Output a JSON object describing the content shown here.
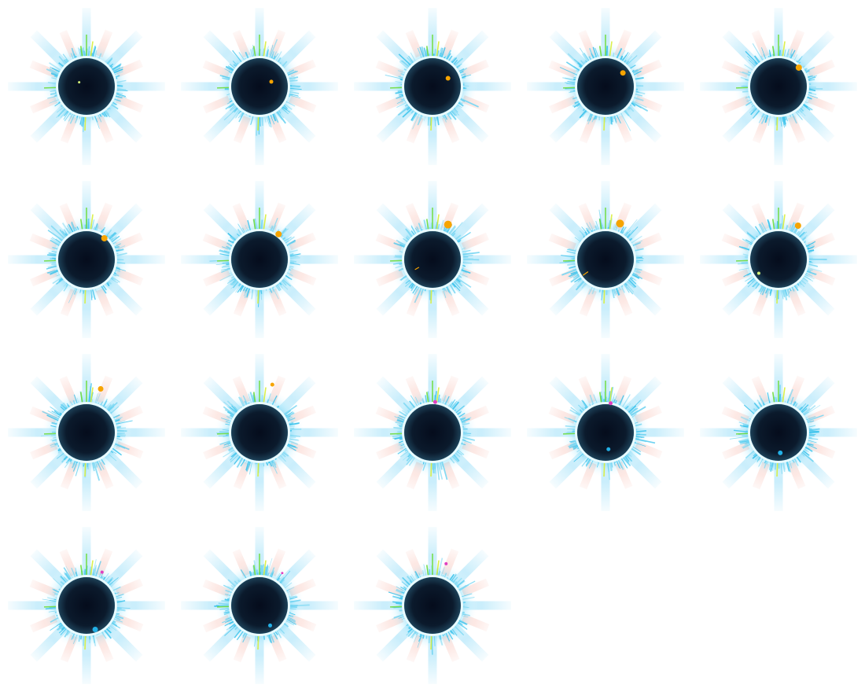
{
  "sheet": {
    "background": "#ffffff",
    "layout": {
      "columns": 5,
      "rows": 4,
      "frame_count": 18
    }
  },
  "palette": {
    "disk_core": "#050c1c",
    "disk_edge": "#1d4158",
    "limb_ring": "#e9fbff",
    "corona_blue": "#40c4ec",
    "corona_light": "#bdefff",
    "diagonal_rays": "#c4ecfb",
    "axis_rays": "#cdf1fb",
    "salmon_rays": "#fbd9d2",
    "spike_green": "#6fdc3a",
    "spike_yellow": "#d8ee3a",
    "sprite_orange": "#f6a400",
    "sprite_magenta": "#e040c0",
    "sprite_cyan": "#23b0e6"
  },
  "frames": [
    {
      "index": 1,
      "sprite": {
        "kind": "none",
        "angle_deg": 0,
        "dist": 0,
        "size": 0
      },
      "extra": {
        "kind": "speck",
        "angle_deg": 300,
        "dist": 0.3,
        "size": 1.5
      }
    },
    {
      "index": 2,
      "sprite": {
        "kind": "orange",
        "angle_deg": 68,
        "dist": 0.45,
        "size": 2.5
      },
      "extra": {
        "kind": "none",
        "angle_deg": 0,
        "dist": 0,
        "size": 0
      }
    },
    {
      "index": 3,
      "sprite": {
        "kind": "orange",
        "angle_deg": 62,
        "dist": 0.62,
        "size": 3
      },
      "extra": {
        "kind": "none",
        "angle_deg": 0,
        "dist": 0,
        "size": 0
      }
    },
    {
      "index": 4,
      "sprite": {
        "kind": "orange",
        "angle_deg": 52,
        "dist": 0.78,
        "size": 3.5
      },
      "extra": {
        "kind": "none",
        "angle_deg": 0,
        "dist": 0,
        "size": 0
      }
    },
    {
      "index": 5,
      "sprite": {
        "kind": "orange",
        "angle_deg": 47,
        "dist": 0.98,
        "size": 4
      },
      "extra": {
        "kind": "none",
        "angle_deg": 0,
        "dist": 0,
        "size": 0
      }
    },
    {
      "index": 6,
      "sprite": {
        "kind": "orange",
        "angle_deg": 40,
        "dist": 0.98,
        "size": 4
      },
      "extra": {
        "kind": "none",
        "angle_deg": 0,
        "dist": 0,
        "size": 0
      }
    },
    {
      "index": 7,
      "sprite": {
        "kind": "orange",
        "angle_deg": 37,
        "dist": 1.12,
        "size": 4
      },
      "extra": {
        "kind": "none",
        "angle_deg": 0,
        "dist": 0,
        "size": 0
      }
    },
    {
      "index": 8,
      "sprite": {
        "kind": "orange",
        "angle_deg": 24,
        "dist": 1.35,
        "size": 5
      },
      "extra": {
        "kind": "streak",
        "angle_deg": 240,
        "dist": 0.55,
        "size": 6
      }
    },
    {
      "index": 9,
      "sprite": {
        "kind": "orange",
        "angle_deg": 22,
        "dist": 1.37,
        "size": 5
      },
      "extra": {
        "kind": "streak",
        "angle_deg": 235,
        "dist": 0.75,
        "size": 8
      }
    },
    {
      "index": 10,
      "sprite": {
        "kind": "orange",
        "angle_deg": 30,
        "dist": 1.38,
        "size": 4
      },
      "extra": {
        "kind": "speck",
        "angle_deg": 235,
        "dist": 0.85,
        "size": 2
      }
    },
    {
      "index": 11,
      "sprite": {
        "kind": "orange",
        "angle_deg": 18,
        "dist": 1.62,
        "size": 3.5
      },
      "extra": {
        "kind": "none",
        "angle_deg": 0,
        "dist": 0,
        "size": 0
      }
    },
    {
      "index": 12,
      "sprite": {
        "kind": "orange",
        "angle_deg": 15,
        "dist": 1.75,
        "size": 2.5
      },
      "extra": {
        "kind": "none",
        "angle_deg": 0,
        "dist": 0,
        "size": 0
      }
    },
    {
      "index": 13,
      "sprite": {
        "kind": "magenta",
        "angle_deg": 5,
        "dist": 1.08,
        "size": 2.5
      },
      "extra": {
        "kind": "none",
        "angle_deg": 0,
        "dist": 0,
        "size": 0
      }
    },
    {
      "index": 14,
      "sprite": {
        "kind": "magenta",
        "angle_deg": 10,
        "dist": 1.05,
        "size": 2.5
      },
      "extra": {
        "kind": "cyan",
        "angle_deg": 170,
        "dist": 0.6,
        "size": 2.5
      }
    },
    {
      "index": 15,
      "sprite": {
        "kind": "cyan",
        "angle_deg": 175,
        "dist": 0.72,
        "size": 3
      },
      "extra": {
        "kind": "none",
        "angle_deg": 0,
        "dist": 0,
        "size": 0
      }
    },
    {
      "index": 16,
      "sprite": {
        "kind": "cyan",
        "angle_deg": 160,
        "dist": 0.9,
        "size": 3.5
      },
      "extra": {
        "kind": "magenta",
        "angle_deg": 25,
        "dist": 1.3,
        "size": 2
      }
    },
    {
      "index": 17,
      "sprite": {
        "kind": "cyan",
        "angle_deg": 152,
        "dist": 0.8,
        "size": 2.5
      },
      "extra": {
        "kind": "magenta",
        "angle_deg": 35,
        "dist": 1.4,
        "size": 1.5
      }
    },
    {
      "index": 18,
      "sprite": {
        "kind": "magenta",
        "angle_deg": 18,
        "dist": 1.55,
        "size": 2
      },
      "extra": {
        "kind": "none",
        "angle_deg": 0,
        "dist": 0,
        "size": 0
      }
    }
  ]
}
